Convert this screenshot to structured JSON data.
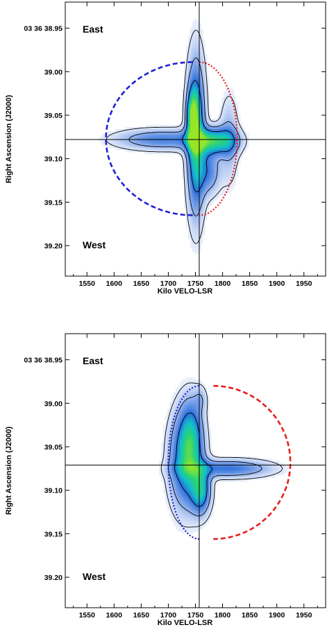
{
  "chart_data": [
    {
      "type": "heatmap",
      "panel": "top",
      "xlabel": "Kilo VELO-LSR",
      "ylabel": "Right Ascension (J2000)",
      "xlim": [
        1510,
        1990
      ],
      "ylim": [
        38.92,
        39.235
      ],
      "xticks": [
        1550,
        1600,
        1650,
        1700,
        1750,
        1800,
        1850,
        1900,
        1950
      ],
      "xtick_labels": [
        "1550",
        "1600",
        "1650",
        "1700",
        "1750",
        "1800",
        "1850",
        "1900",
        "1950"
      ],
      "yticks": [
        38.95,
        39.0,
        39.05,
        39.1,
        39.15,
        39.2
      ],
      "ytick_labels": [
        "03 36 38.95",
        "39.00",
        "39.05",
        "39.10",
        "39.15",
        "39.20"
      ],
      "annotations": [
        "East",
        "West"
      ],
      "crosshair": {
        "x": 1757,
        "y": 39.078
      },
      "blobs": [
        {
          "x": 1751,
          "y": 39.075,
          "sx": 11,
          "sy": 0.058,
          "peak": 0.75
        },
        {
          "x": 1745,
          "y": 39.052,
          "sx": 7,
          "sy": 0.02,
          "peak": 0.6
        },
        {
          "x": 1688,
          "y": 39.078,
          "sx": 58,
          "sy": 0.008,
          "peak": 0.38
        },
        {
          "x": 1783,
          "y": 39.08,
          "sx": 28,
          "sy": 0.01,
          "peak": 0.7
        },
        {
          "x": 1775,
          "y": 39.115,
          "sx": 14,
          "sy": 0.018,
          "peak": 0.35
        },
        {
          "x": 1812,
          "y": 39.078,
          "sx": 12,
          "sy": 0.035,
          "peak": 0.22
        }
      ],
      "contour_levels": [
        0.08,
        0.22,
        0.45
      ],
      "arcs": [
        {
          "cx": 1745,
          "cy": 39.077,
          "rx": 160,
          "ry": 0.088,
          "t1": 90,
          "t2": 270,
          "color": "#1f1fd6",
          "style": "dashed"
        },
        {
          "cx": 1757,
          "cy": 39.077,
          "rx": 70,
          "ry": 0.088,
          "t1": -90,
          "t2": 90,
          "color": "#e81e1e",
          "style": "dotted"
        }
      ]
    },
    {
      "type": "heatmap",
      "panel": "bottom",
      "xlabel": "Kilo VELO-LSR",
      "ylabel": "Right Ascension (J2000)",
      "xlim": [
        1510,
        1990
      ],
      "ylim": [
        38.92,
        39.235
      ],
      "xticks": [
        1550,
        1600,
        1650,
        1700,
        1750,
        1800,
        1850,
        1900,
        1950
      ],
      "xtick_labels": [
        "1550",
        "1600",
        "1650",
        "1700",
        "1750",
        "1800",
        "1850",
        "1900",
        "1950"
      ],
      "yticks": [
        38.95,
        39.0,
        39.05,
        39.1,
        39.15,
        39.2
      ],
      "ytick_labels": [
        "03 36 38.95",
        "39.00",
        "39.05",
        "39.10",
        "39.15",
        "39.20"
      ],
      "annotations": [
        "East",
        "West"
      ],
      "crosshair": {
        "x": 1757,
        "y": 39.071
      },
      "blobs": [
        {
          "x": 1732,
          "y": 39.065,
          "sx": 20,
          "sy": 0.038,
          "peak": 0.6
        },
        {
          "x": 1743,
          "y": 39.04,
          "sx": 14,
          "sy": 0.03,
          "peak": 0.4
        },
        {
          "x": 1760,
          "y": 39.1,
          "sx": 12,
          "sy": 0.018,
          "peak": 0.6
        },
        {
          "x": 1810,
          "y": 39.075,
          "sx": 55,
          "sy": 0.007,
          "peak": 0.42
        },
        {
          "x": 1760,
          "y": 38.995,
          "sx": 8,
          "sy": 0.01,
          "peak": 0.15
        }
      ],
      "contour_levels": [
        0.08,
        0.22,
        0.45
      ],
      "arcs": [
        {
          "cx": 1757,
          "cy": 39.068,
          "rx": 57,
          "ry": 0.088,
          "t1": 90,
          "t2": 270,
          "color": "#1f1fd6",
          "style": "dotted"
        },
        {
          "cx": 1783,
          "cy": 39.068,
          "rx": 142,
          "ry": 0.088,
          "t1": -90,
          "t2": 90,
          "color": "#e81e1e",
          "style": "dashed"
        }
      ]
    }
  ]
}
